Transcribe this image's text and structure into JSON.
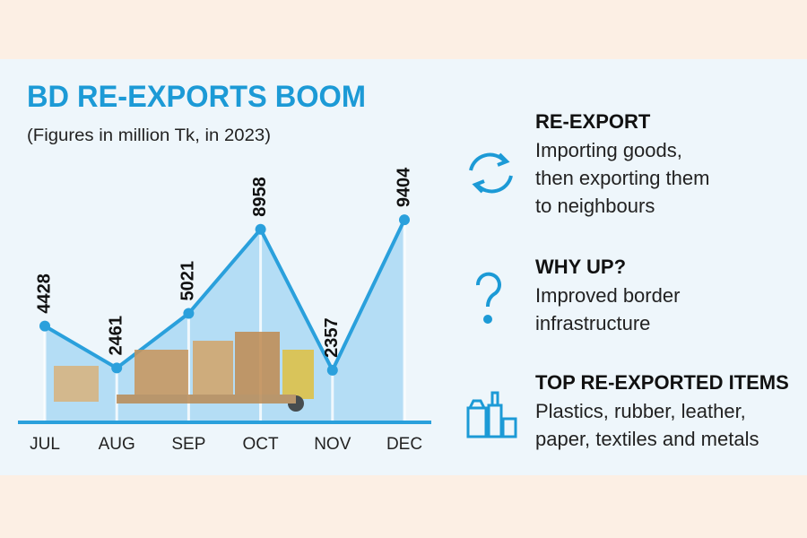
{
  "chart_data": {
    "type": "line",
    "title": "BD RE-EXPORTS BOOM",
    "subtitle": "(Figures in million Tk, in 2023)",
    "categories": [
      "JUL",
      "AUG",
      "SEP",
      "OCT",
      "NOV",
      "DEC"
    ],
    "values": [
      4428,
      2461,
      5021,
      8958,
      2357,
      9404
    ],
    "color": "#2aa0dc",
    "ylim": [
      0,
      10000
    ]
  },
  "notes": [
    {
      "heading": "RE-EXPORT",
      "lines": [
        "Importing goods,",
        "then exporting them",
        "to neighbours"
      ]
    },
    {
      "heading": "WHY UP?",
      "lines": [
        "Improved border",
        "infrastructure"
      ]
    },
    {
      "heading": "TOP RE-EXPORTED ITEMS",
      "lines": [
        "Plastics, rubber, leather,",
        "paper, textiles and metals"
      ]
    }
  ]
}
